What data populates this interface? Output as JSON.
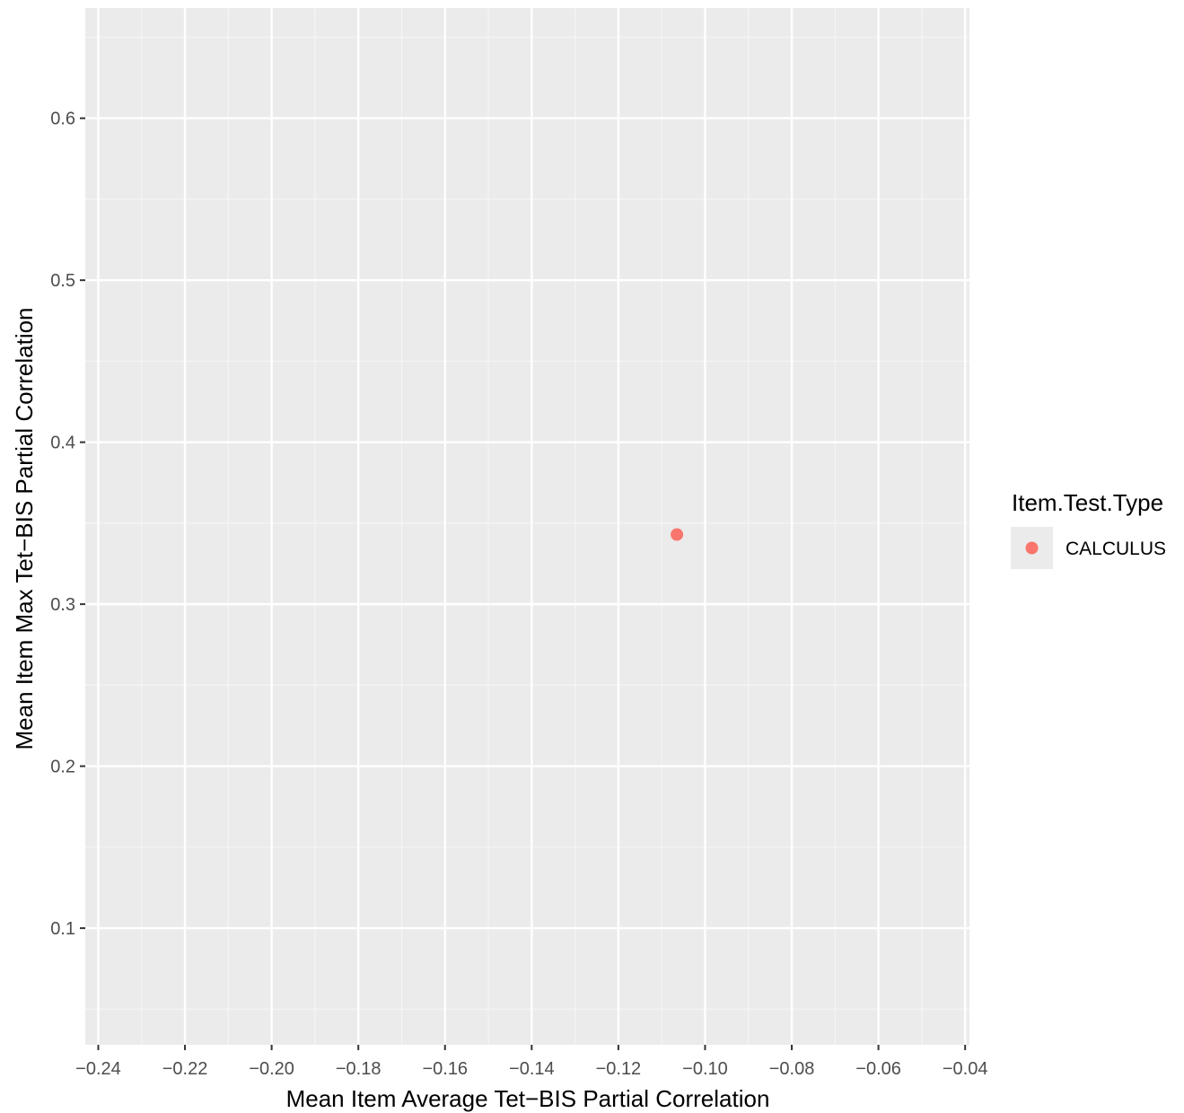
{
  "chart_data": {
    "type": "scatter",
    "title": "",
    "xlabel": "Mean Item Average Tet−BIS Partial Correlation",
    "ylabel": "Mean Item Max Tet−BIS Partial Correlation",
    "xlim": [
      -0.243,
      -0.039
    ],
    "ylim": [
      0.028,
      0.668
    ],
    "x_ticks": [
      -0.24,
      -0.22,
      -0.2,
      -0.18,
      -0.16,
      -0.14,
      -0.12,
      -0.1,
      -0.08,
      -0.06,
      -0.04
    ],
    "x_tick_labels": [
      "−0.24",
      "−0.22",
      "−0.20",
      "−0.18",
      "−0.16",
      "−0.14",
      "−0.12",
      "−0.10",
      "−0.08",
      "−0.06",
      "−0.04"
    ],
    "y_ticks": [
      0.1,
      0.2,
      0.3,
      0.4,
      0.5,
      0.6
    ],
    "y_tick_labels": [
      "0.1",
      "0.2",
      "0.3",
      "0.4",
      "0.5",
      "0.6"
    ],
    "grid": true,
    "legend": {
      "title": "Item.Test.Type",
      "position": "right",
      "entries": [
        {
          "label": "CALCULUS",
          "color": "#F8766D"
        }
      ]
    },
    "series": [
      {
        "name": "CALCULUS",
        "color": "#F8766D",
        "points": [
          {
            "x": -0.1065,
            "y": 0.343
          }
        ]
      }
    ]
  },
  "colors": {
    "panel_background": "#EBEBEB",
    "grid_major": "#FFFFFF",
    "grid_minor": "#F5F5F5",
    "tick_label": "#4D4D4D",
    "tick_mark": "#333333"
  }
}
